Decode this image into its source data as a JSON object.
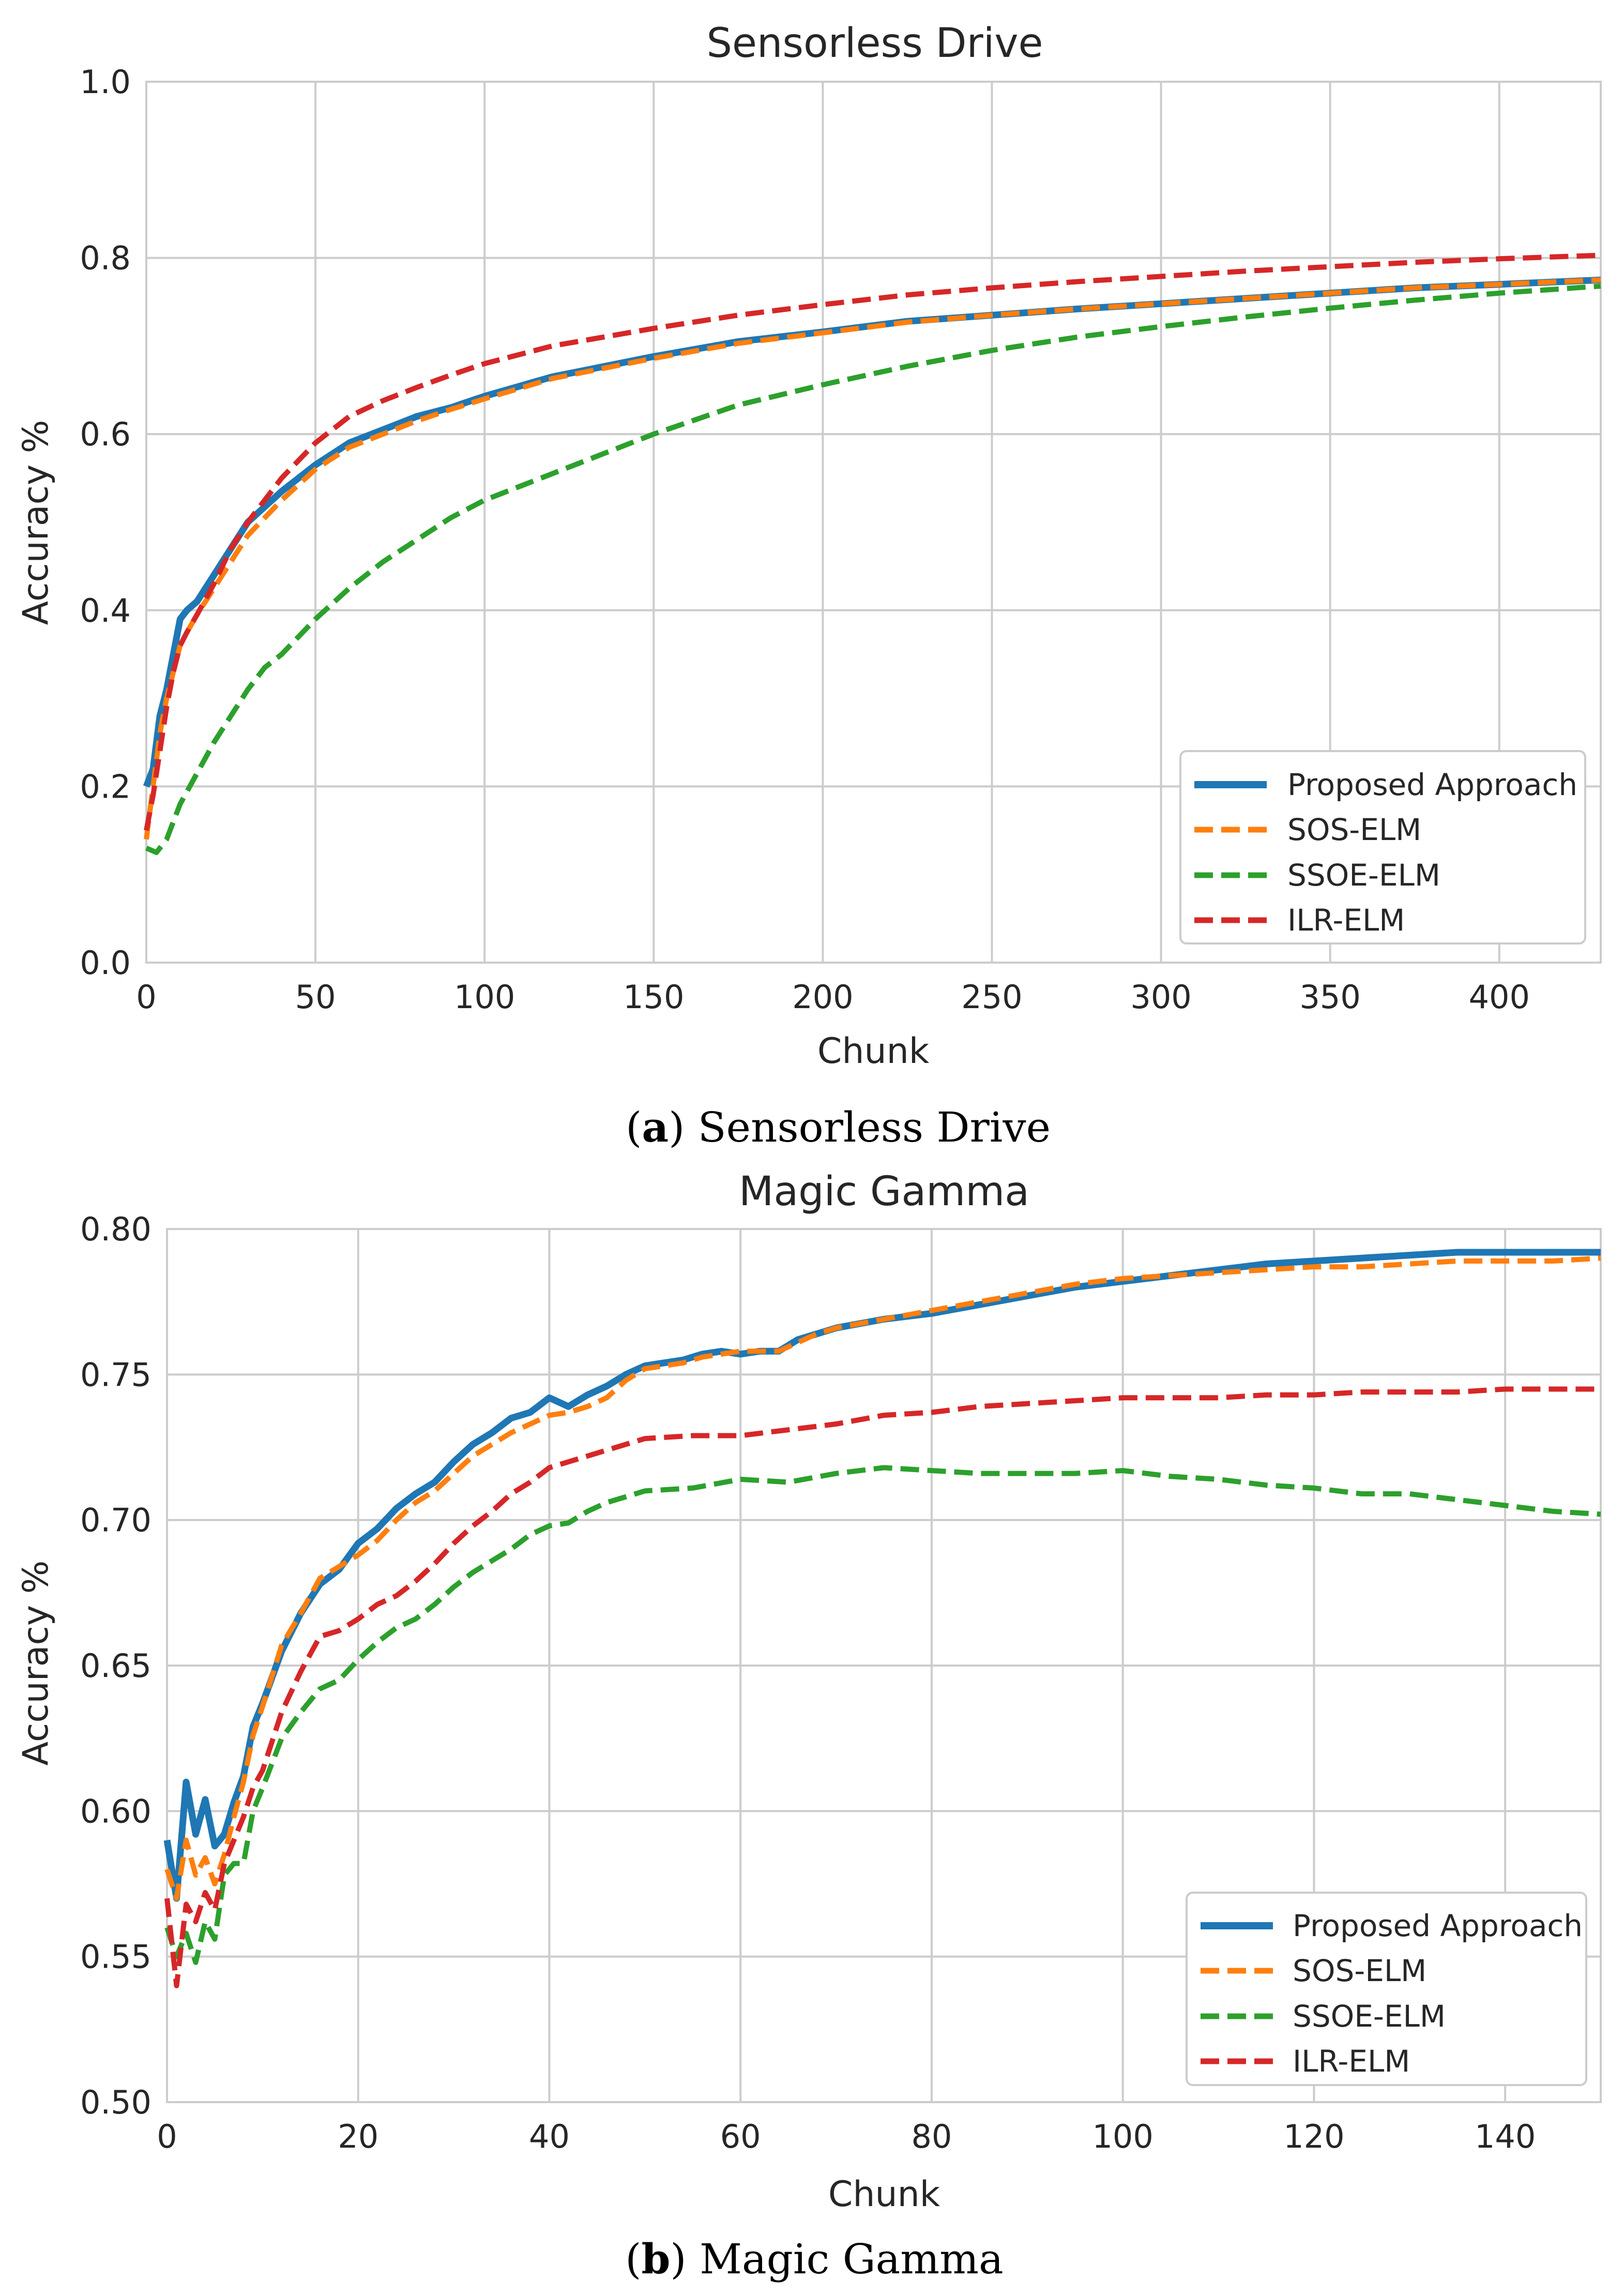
{
  "chart_data": [
    {
      "type": "line",
      "title": "Sensorless Drive",
      "xlabel": "Chunk",
      "ylabel": "Accuracy %",
      "xlim": [
        0,
        430
      ],
      "ylim": [
        0.0,
        1.0
      ],
      "xticks": [
        0,
        50,
        100,
        150,
        200,
        250,
        300,
        350,
        400
      ],
      "yticks": [
        0.0,
        0.2,
        0.4,
        0.6,
        0.8,
        1.0
      ],
      "ytick_decimals": 1,
      "grid": true,
      "legend_position": "bottom-right",
      "caption_letter": "a",
      "caption_text": "Sensorless Drive",
      "series": [
        {
          "name": "Proposed Approach",
          "color": "#1f77b4",
          "style": "solid",
          "x": [
            0,
            2,
            4,
            6,
            8,
            10,
            12,
            15,
            20,
            25,
            30,
            40,
            50,
            60,
            70,
            80,
            90,
            100,
            120,
            150,
            175,
            200,
            225,
            250,
            275,
            300,
            325,
            350,
            375,
            400,
            430
          ],
          "y": [
            0.2,
            0.22,
            0.28,
            0.31,
            0.35,
            0.39,
            0.4,
            0.41,
            0.44,
            0.47,
            0.5,
            0.535,
            0.565,
            0.59,
            0.605,
            0.62,
            0.63,
            0.643,
            0.665,
            0.688,
            0.705,
            0.716,
            0.728,
            0.735,
            0.742,
            0.748,
            0.754,
            0.76,
            0.766,
            0.77,
            0.775
          ]
        },
        {
          "name": "SOS-ELM",
          "color": "#ff7f0e",
          "style": "dashed",
          "x": [
            0,
            2,
            4,
            6,
            8,
            10,
            12,
            15,
            20,
            25,
            30,
            40,
            50,
            60,
            70,
            80,
            90,
            100,
            120,
            150,
            175,
            200,
            225,
            250,
            275,
            300,
            325,
            350,
            375,
            400,
            430
          ],
          "y": [
            0.14,
            0.2,
            0.26,
            0.3,
            0.33,
            0.36,
            0.375,
            0.395,
            0.425,
            0.455,
            0.485,
            0.525,
            0.56,
            0.585,
            0.6,
            0.615,
            0.628,
            0.64,
            0.663,
            0.686,
            0.703,
            0.715,
            0.727,
            0.735,
            0.742,
            0.748,
            0.754,
            0.76,
            0.766,
            0.77,
            0.775
          ]
        },
        {
          "name": "SSOE-ELM",
          "color": "#2ca02c",
          "style": "dashed",
          "x": [
            0,
            3,
            6,
            8,
            10,
            15,
            20,
            25,
            30,
            35,
            40,
            50,
            60,
            70,
            80,
            90,
            100,
            120,
            150,
            175,
            200,
            225,
            250,
            275,
            300,
            325,
            350,
            375,
            400,
            430
          ],
          "y": [
            0.13,
            0.125,
            0.14,
            0.16,
            0.18,
            0.215,
            0.25,
            0.28,
            0.31,
            0.335,
            0.35,
            0.39,
            0.425,
            0.455,
            0.48,
            0.505,
            0.525,
            0.555,
            0.6,
            0.633,
            0.656,
            0.677,
            0.695,
            0.71,
            0.722,
            0.733,
            0.743,
            0.752,
            0.76,
            0.768
          ]
        },
        {
          "name": "ILR-ELM",
          "color": "#d62728",
          "style": "dashed",
          "x": [
            0,
            2,
            4,
            6,
            8,
            10,
            12,
            15,
            20,
            25,
            30,
            40,
            50,
            60,
            70,
            80,
            90,
            100,
            120,
            150,
            175,
            200,
            225,
            250,
            275,
            300,
            325,
            350,
            375,
            400,
            430
          ],
          "y": [
            0.15,
            0.19,
            0.24,
            0.29,
            0.33,
            0.36,
            0.375,
            0.395,
            0.43,
            0.47,
            0.5,
            0.55,
            0.59,
            0.62,
            0.638,
            0.653,
            0.667,
            0.68,
            0.7,
            0.72,
            0.735,
            0.747,
            0.758,
            0.766,
            0.773,
            0.779,
            0.785,
            0.79,
            0.795,
            0.799,
            0.803
          ]
        }
      ]
    },
    {
      "type": "line",
      "title": "Magic Gamma",
      "xlabel": "Chunk",
      "ylabel": "Accuracy %",
      "xlim": [
        0,
        150
      ],
      "ylim": [
        0.5,
        0.8
      ],
      "xticks": [
        0,
        20,
        40,
        60,
        80,
        100,
        120,
        140
      ],
      "yticks": [
        0.5,
        0.55,
        0.6,
        0.65,
        0.7,
        0.75,
        0.8
      ],
      "ytick_decimals": 2,
      "grid": true,
      "legend_position": "bottom-right",
      "caption_letter": "b",
      "caption_text": "Magic Gamma",
      "series": [
        {
          "name": "Proposed Approach",
          "color": "#1f77b4",
          "style": "solid",
          "x": [
            0,
            1,
            2,
            3,
            4,
            5,
            6,
            7,
            8,
            9,
            10,
            12,
            14,
            16,
            18,
            20,
            22,
            24,
            26,
            28,
            30,
            32,
            34,
            36,
            38,
            40,
            42,
            44,
            46,
            48,
            50,
            52,
            54,
            56,
            58,
            60,
            62,
            64,
            66,
            68,
            70,
            75,
            80,
            85,
            90,
            95,
            100,
            105,
            110,
            115,
            120,
            125,
            130,
            135,
            140,
            145,
            150
          ],
          "y": [
            0.59,
            0.57,
            0.61,
            0.592,
            0.604,
            0.588,
            0.592,
            0.603,
            0.612,
            0.629,
            0.637,
            0.655,
            0.668,
            0.678,
            0.683,
            0.692,
            0.697,
            0.704,
            0.709,
            0.713,
            0.72,
            0.726,
            0.73,
            0.735,
            0.737,
            0.742,
            0.739,
            0.743,
            0.746,
            0.75,
            0.753,
            0.754,
            0.755,
            0.757,
            0.758,
            0.757,
            0.758,
            0.758,
            0.762,
            0.764,
            0.766,
            0.769,
            0.771,
            0.774,
            0.777,
            0.78,
            0.782,
            0.784,
            0.786,
            0.788,
            0.789,
            0.79,
            0.791,
            0.792,
            0.792,
            0.792,
            0.792
          ]
        },
        {
          "name": "SOS-ELM",
          "color": "#ff7f0e",
          "style": "dashed",
          "x": [
            0,
            1,
            2,
            3,
            4,
            5,
            6,
            7,
            8,
            9,
            10,
            12,
            14,
            16,
            18,
            20,
            22,
            24,
            26,
            28,
            30,
            32,
            34,
            36,
            38,
            40,
            42,
            44,
            46,
            48,
            50,
            52,
            54,
            56,
            58,
            60,
            62,
            64,
            66,
            68,
            70,
            75,
            80,
            85,
            90,
            95,
            100,
            105,
            110,
            115,
            120,
            125,
            130,
            135,
            140,
            145,
            150
          ],
          "y": [
            0.58,
            0.57,
            0.59,
            0.578,
            0.584,
            0.575,
            0.585,
            0.598,
            0.61,
            0.626,
            0.636,
            0.657,
            0.668,
            0.68,
            0.684,
            0.688,
            0.693,
            0.7,
            0.706,
            0.71,
            0.716,
            0.722,
            0.726,
            0.73,
            0.733,
            0.736,
            0.737,
            0.739,
            0.742,
            0.748,
            0.752,
            0.753,
            0.754,
            0.756,
            0.757,
            0.758,
            0.758,
            0.758,
            0.761,
            0.764,
            0.766,
            0.769,
            0.772,
            0.775,
            0.778,
            0.781,
            0.783,
            0.784,
            0.785,
            0.786,
            0.787,
            0.787,
            0.788,
            0.789,
            0.789,
            0.789,
            0.79
          ]
        },
        {
          "name": "SSOE-ELM",
          "color": "#2ca02c",
          "style": "dashed",
          "x": [
            0,
            1,
            2,
            3,
            4,
            5,
            6,
            7,
            8,
            9,
            10,
            12,
            14,
            16,
            18,
            20,
            22,
            24,
            26,
            28,
            30,
            32,
            34,
            36,
            38,
            40,
            42,
            44,
            46,
            48,
            50,
            55,
            60,
            65,
            70,
            75,
            80,
            85,
            90,
            95,
            100,
            105,
            110,
            115,
            120,
            125,
            130,
            135,
            140,
            145,
            150
          ],
          "y": [
            0.56,
            0.55,
            0.558,
            0.548,
            0.562,
            0.556,
            0.578,
            0.582,
            0.582,
            0.6,
            0.608,
            0.625,
            0.634,
            0.642,
            0.645,
            0.652,
            0.658,
            0.663,
            0.666,
            0.671,
            0.677,
            0.682,
            0.686,
            0.69,
            0.695,
            0.698,
            0.699,
            0.703,
            0.706,
            0.708,
            0.71,
            0.711,
            0.714,
            0.713,
            0.716,
            0.718,
            0.717,
            0.716,
            0.716,
            0.716,
            0.717,
            0.715,
            0.714,
            0.712,
            0.711,
            0.709,
            0.709,
            0.707,
            0.705,
            0.703,
            0.702
          ]
        },
        {
          "name": "ILR-ELM",
          "color": "#d62728",
          "style": "dashed",
          "x": [
            0,
            1,
            2,
            3,
            4,
            5,
            6,
            7,
            8,
            9,
            10,
            12,
            14,
            16,
            18,
            20,
            22,
            24,
            26,
            28,
            30,
            32,
            34,
            36,
            38,
            40,
            42,
            44,
            46,
            48,
            50,
            55,
            60,
            65,
            70,
            75,
            80,
            85,
            90,
            95,
            100,
            105,
            110,
            115,
            120,
            125,
            130,
            135,
            140,
            145,
            150
          ],
          "y": [
            0.57,
            0.54,
            0.568,
            0.562,
            0.572,
            0.566,
            0.582,
            0.59,
            0.598,
            0.608,
            0.614,
            0.634,
            0.648,
            0.66,
            0.662,
            0.666,
            0.671,
            0.674,
            0.679,
            0.685,
            0.692,
            0.698,
            0.703,
            0.709,
            0.713,
            0.718,
            0.72,
            0.722,
            0.724,
            0.726,
            0.728,
            0.729,
            0.729,
            0.731,
            0.733,
            0.736,
            0.737,
            0.739,
            0.74,
            0.741,
            0.742,
            0.742,
            0.742,
            0.743,
            0.743,
            0.744,
            0.744,
            0.744,
            0.745,
            0.745,
            0.745
          ]
        }
      ]
    }
  ]
}
